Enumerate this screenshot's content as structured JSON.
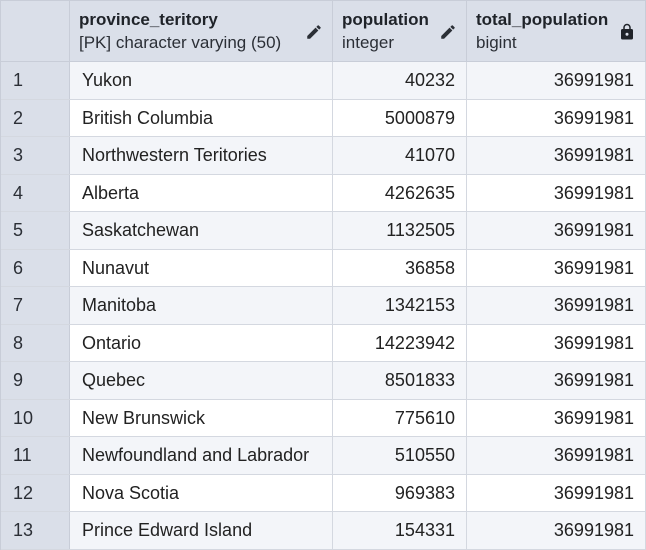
{
  "columns": [
    {
      "name": "province_teritory",
      "type": "[PK] character varying (50)",
      "icon": "pencil-icon"
    },
    {
      "name": "population",
      "type": "integer",
      "icon": "pencil-icon"
    },
    {
      "name": "total_population",
      "type": "bigint",
      "icon": "lock-icon"
    }
  ],
  "rows": [
    {
      "num": "1",
      "province": "Yukon",
      "population": "40232",
      "total": "36991981"
    },
    {
      "num": "2",
      "province": "British Columbia",
      "population": "5000879",
      "total": "36991981"
    },
    {
      "num": "3",
      "province": "Northwestern Teritories",
      "population": "41070",
      "total": "36991981"
    },
    {
      "num": "4",
      "province": "Alberta",
      "population": "4262635",
      "total": "36991981"
    },
    {
      "num": "5",
      "province": "Saskatchewan",
      "population": "1132505",
      "total": "36991981"
    },
    {
      "num": "6",
      "province": "Nunavut",
      "population": "36858",
      "total": "36991981"
    },
    {
      "num": "7",
      "province": "Manitoba",
      "population": "1342153",
      "total": "36991981"
    },
    {
      "num": "8",
      "province": "Ontario",
      "population": "14223942",
      "total": "36991981"
    },
    {
      "num": "9",
      "province": "Quebec",
      "population": "8501833",
      "total": "36991981"
    },
    {
      "num": "10",
      "province": "New Brunswick",
      "population": "775610",
      "total": "36991981"
    },
    {
      "num": "11",
      "province": "Newfoundland and Labrador",
      "population": "510550",
      "total": "36991981"
    },
    {
      "num": "12",
      "province": "Nova Scotia",
      "population": "969383",
      "total": "36991981"
    },
    {
      "num": "13",
      "province": "Prince Edward Island",
      "population": "154331",
      "total": "36991981"
    }
  ],
  "colors": {
    "header_bg": "#dadfe9",
    "row_alt_bg": "#f3f5f9",
    "border": "#c8cdd8"
  }
}
